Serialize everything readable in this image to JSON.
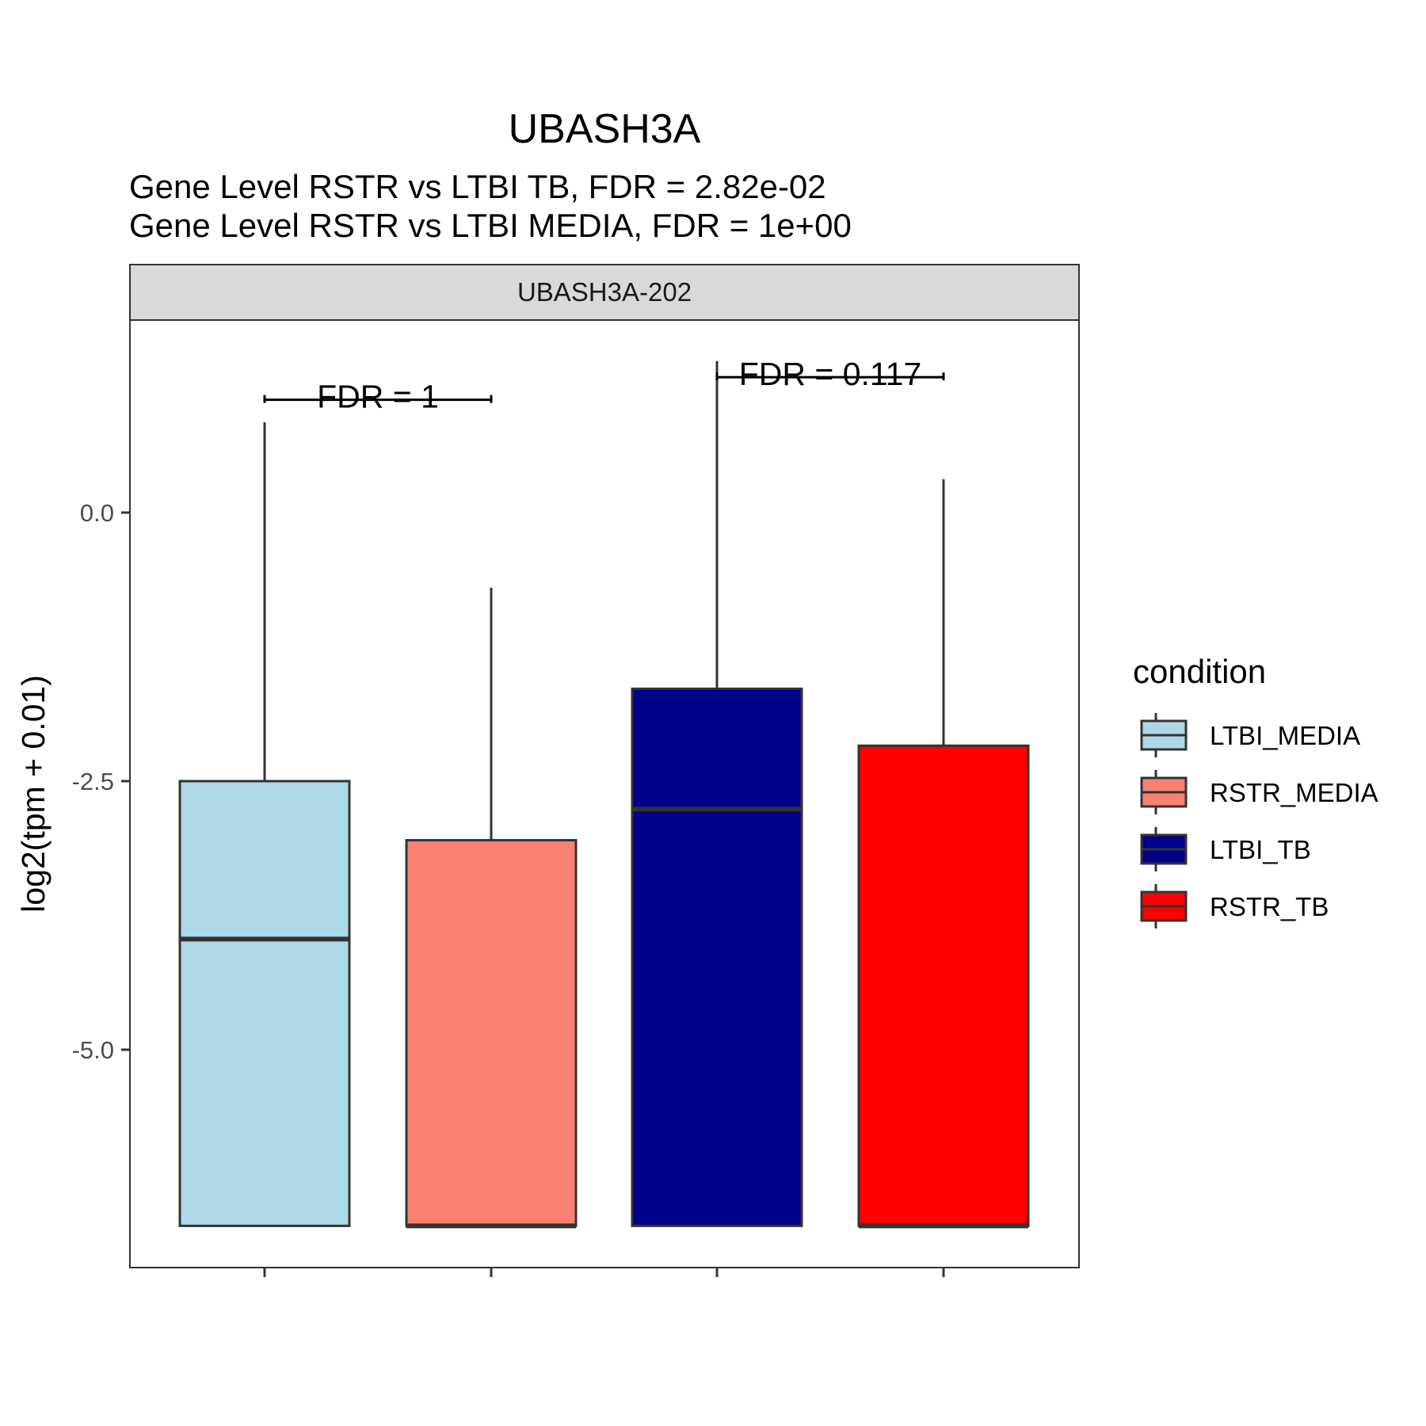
{
  "chart_data": {
    "type": "box",
    "title": "UBASH3A",
    "subtitle": [
      "Gene Level RSTR vs LTBI TB, FDR =  2.82e-02",
      "Gene Level RSTR vs LTBI MEDIA, FDR =  1e+00"
    ],
    "facet_label": "UBASH3A-202",
    "ylabel": "log2(tpm + 0.01)",
    "xlabel": "",
    "ylim": [
      -7.2,
      1.8
    ],
    "yticks": [
      0.0,
      -2.5,
      -5.0
    ],
    "ytick_labels": [
      "0.0",
      "-2.5",
      "-5.0"
    ],
    "grid": false,
    "legend": {
      "title": "condition",
      "position": "right"
    },
    "categories": [
      "LTBI_MEDIA",
      "RSTR_MEDIA",
      "LTBI_TB",
      "RSTR_TB"
    ],
    "series": [
      {
        "name": "LTBI_MEDIA",
        "color": "#add8e6",
        "min": -6.64,
        "q1": -6.64,
        "median": -3.97,
        "q3": -2.5,
        "max": 0.84
      },
      {
        "name": "RSTR_MEDIA",
        "color": "#fa8072",
        "min": -6.64,
        "q1": -6.64,
        "median": -6.64,
        "q3": -3.05,
        "max": -0.7
      },
      {
        "name": "LTBI_TB",
        "color": "#00008b",
        "min": -6.64,
        "q1": -6.64,
        "median": -2.76,
        "q3": -1.64,
        "max": 1.41
      },
      {
        "name": "RSTR_TB",
        "color": "#ff0000",
        "min": -6.64,
        "q1": -6.64,
        "median": -6.64,
        "q3": -2.17,
        "max": 0.31
      }
    ],
    "annotations": [
      {
        "text": "FDR =  1",
        "from": 0,
        "to": 1,
        "y": 1.05
      },
      {
        "text": "FDR =  0.117",
        "from": 2,
        "to": 3,
        "y": 1.26
      }
    ]
  }
}
